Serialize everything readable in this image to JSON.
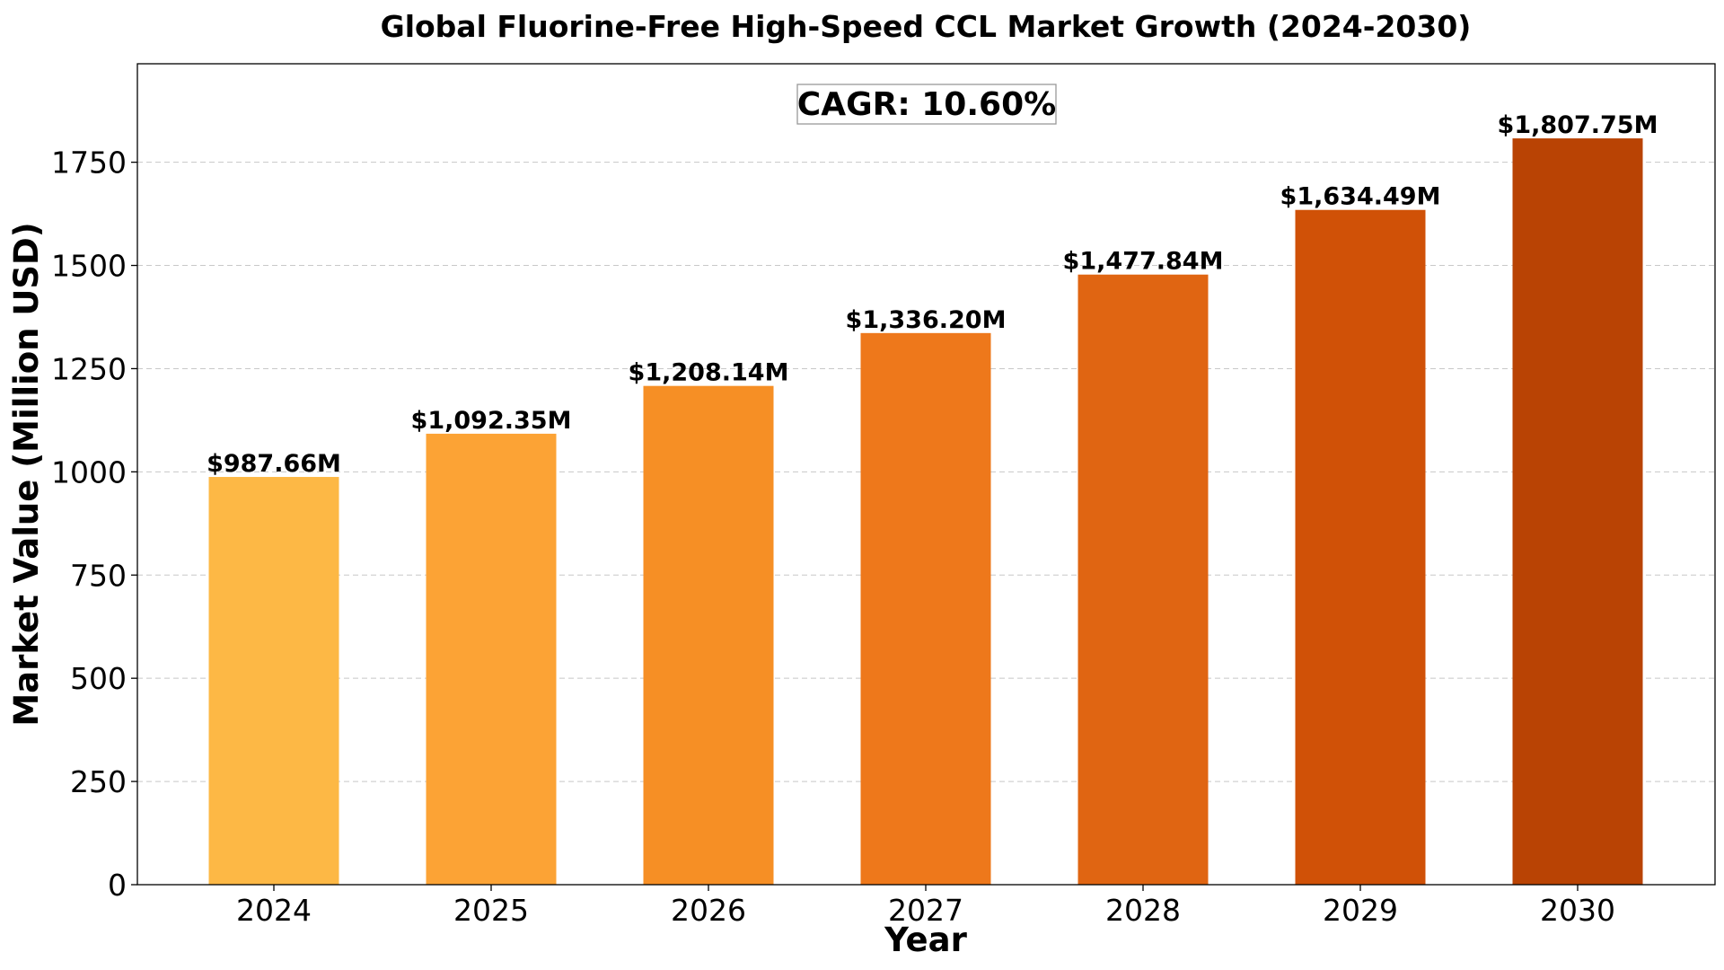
{
  "chart_data": {
    "type": "bar",
    "title": "Global Fluorine-Free High-Speed CCL Market Growth (2024-2030)",
    "xlabel": "Year",
    "ylabel": "Market Value (Million USD)",
    "categories": [
      "2024",
      "2025",
      "2026",
      "2027",
      "2028",
      "2029",
      "2030"
    ],
    "values": [
      987.66,
      1092.35,
      1208.14,
      1336.2,
      1477.84,
      1634.49,
      1807.75
    ],
    "value_labels": [
      "$987.66M",
      "$1,092.35M",
      "$1,208.14M",
      "$1,336.20M",
      "$1,477.84M",
      "$1,634.49M",
      "$1,807.75M"
    ],
    "bar_colors": [
      "#fdb845",
      "#fca335",
      "#f68f25",
      "#ee781b",
      "#e06512",
      "#d05107",
      "#b94304"
    ],
    "ylim": [
      0,
      1988.5
    ],
    "yticks": [
      0,
      250,
      500,
      750,
      1000,
      1250,
      1500,
      1750
    ],
    "grid": true,
    "annotation": "CAGR: 10.60%"
  }
}
